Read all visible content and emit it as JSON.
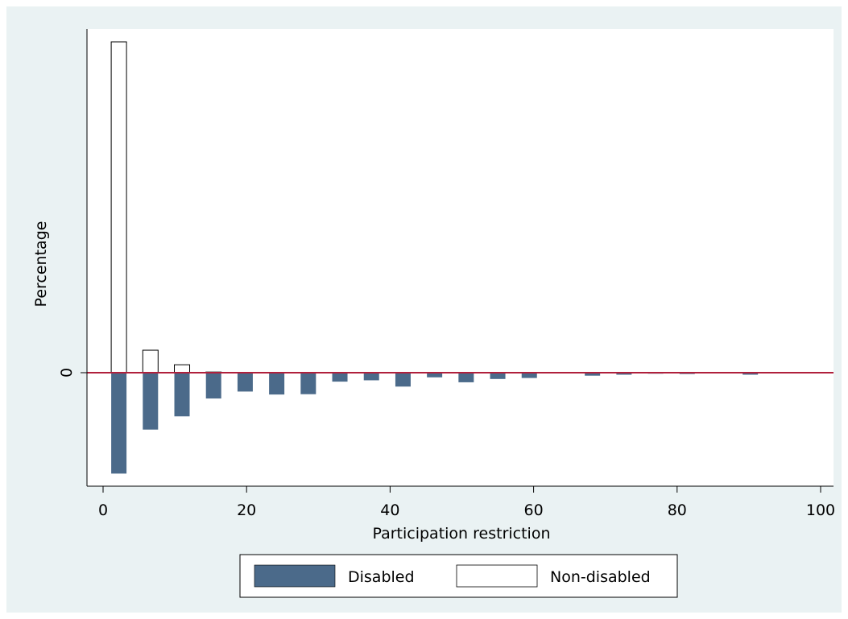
{
  "chart_data": {
    "type": "bar",
    "xlabel": "Participation restriction",
    "ylabel": "Percentage",
    "xlim": [
      0,
      100
    ],
    "xticks": [
      0,
      20,
      40,
      60,
      80,
      100
    ],
    "yticks": [
      0
    ],
    "x": [
      2.2,
      6.6,
      11.0,
      15.4,
      19.8,
      24.2,
      28.6,
      33.0,
      37.4,
      41.8,
      46.2,
      50.6,
      55.0,
      59.4,
      63.8,
      68.2,
      72.6,
      77.0,
      81.4,
      85.8,
      90.2
    ],
    "series": [
      {
        "name": "Disabled",
        "color": "#4b6a8a",
        "values": [
          -0.305,
          -0.172,
          -0.132,
          -0.078,
          -0.057,
          -0.066,
          -0.065,
          -0.027,
          -0.023,
          -0.042,
          -0.014,
          -0.029,
          -0.019,
          -0.016,
          -0.002,
          -0.009,
          -0.006,
          -0.003,
          -0.004,
          -0.002,
          -0.006
        ]
      },
      {
        "name": "Non-disabled",
        "color": "#ffffff",
        "values": [
          1.0,
          0.068,
          0.024,
          0.002,
          0,
          0.001,
          0,
          0,
          0,
          0,
          0,
          0,
          0,
          0,
          0,
          0,
          0,
          0,
          0,
          0,
          0
        ]
      }
    ],
    "reference_line": {
      "y": 0,
      "color": "#b0203c"
    },
    "legend_position": "bottom",
    "grid": false
  }
}
